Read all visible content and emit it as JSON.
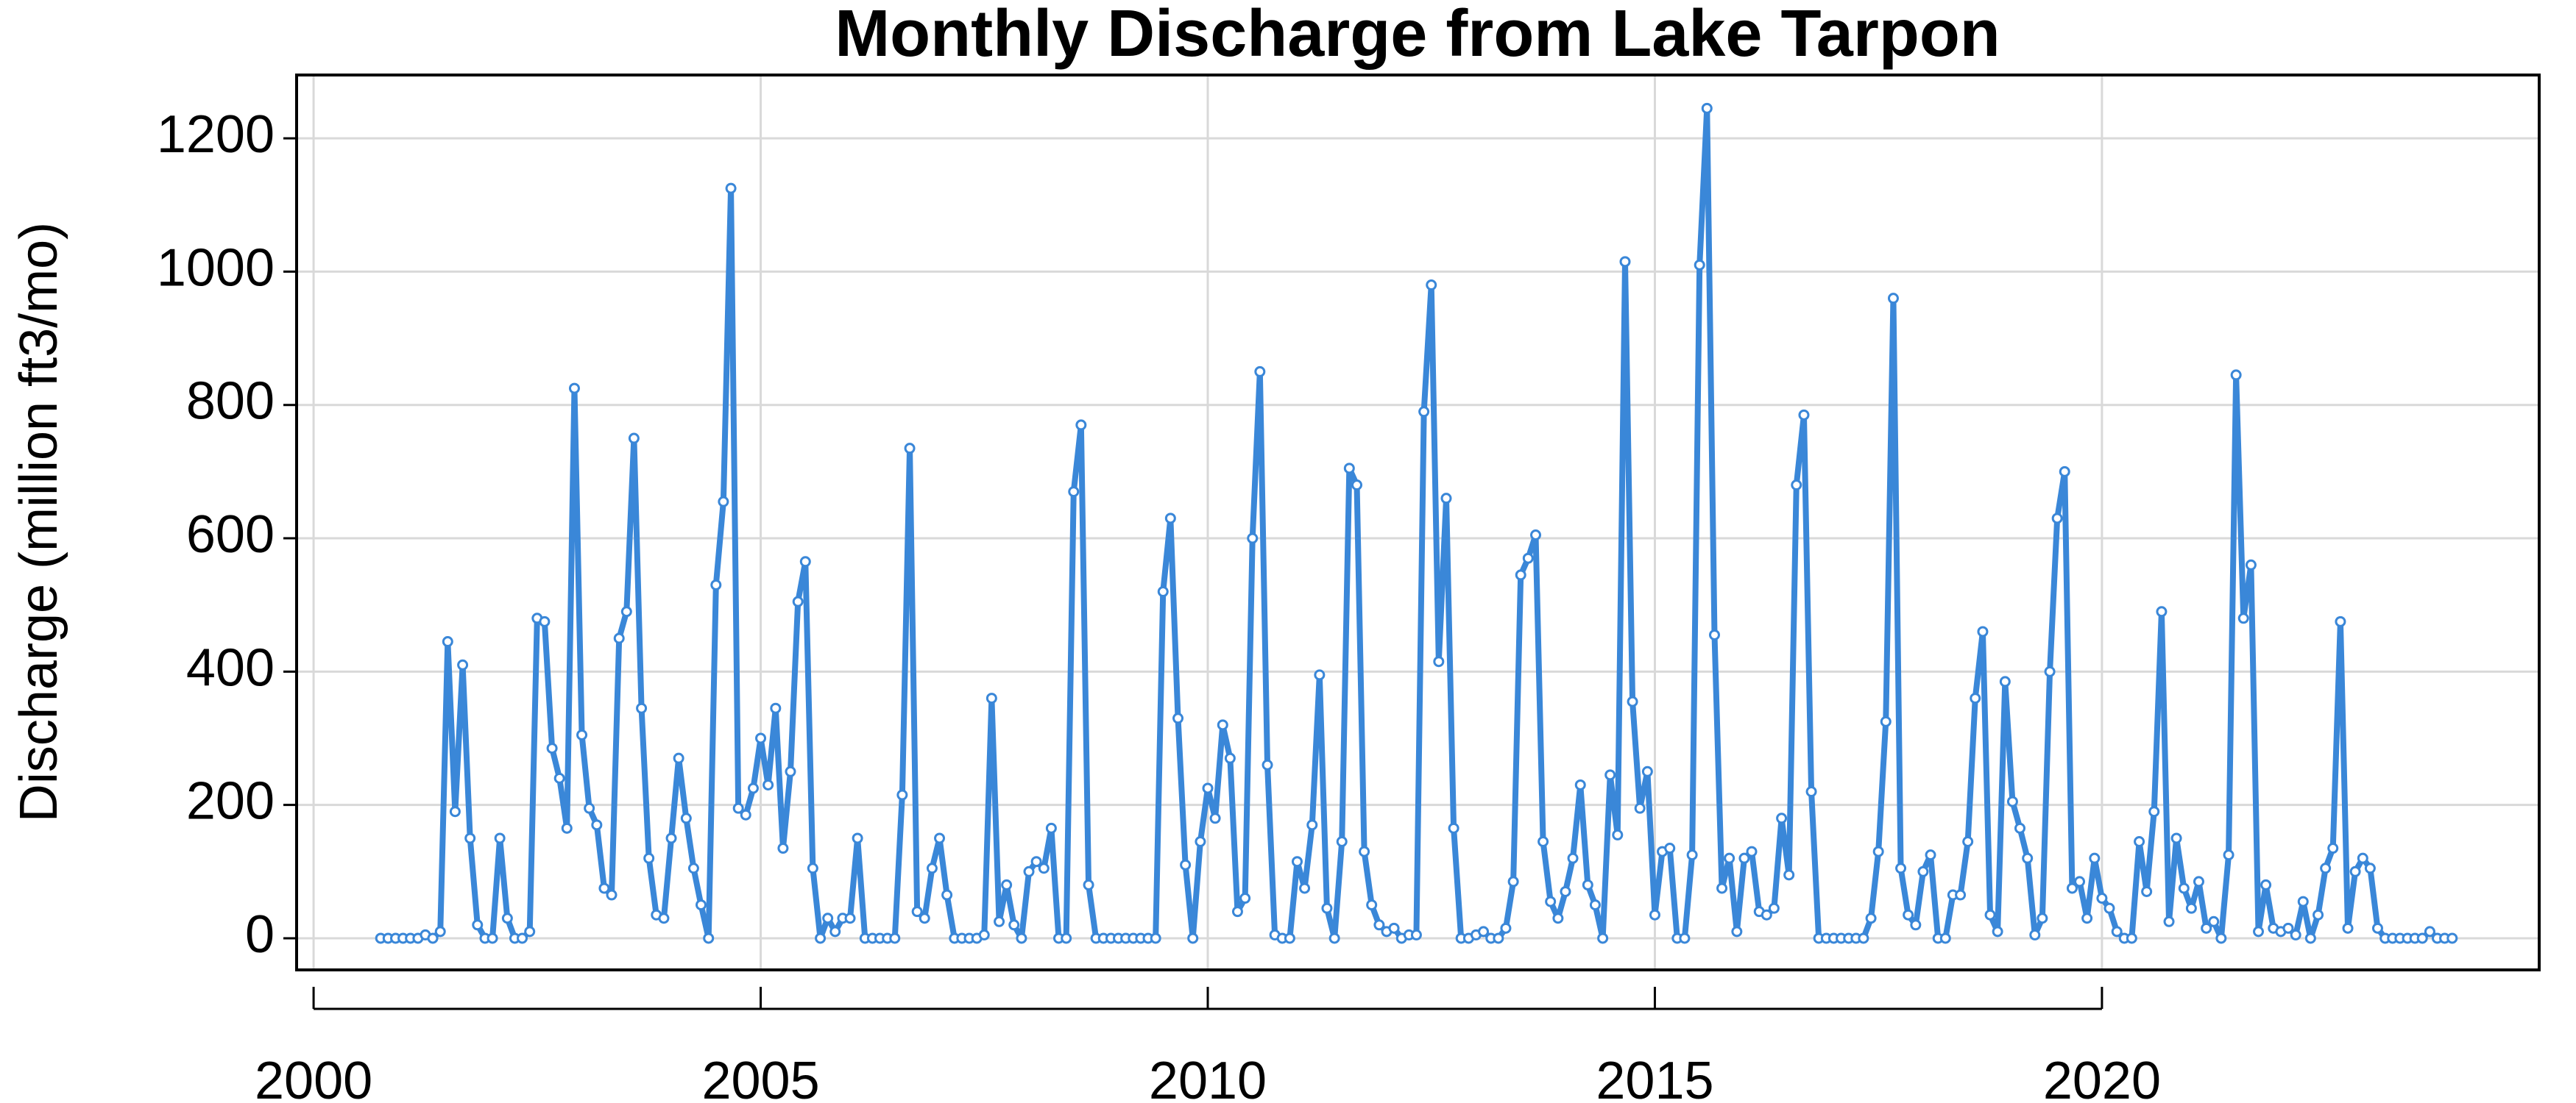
{
  "chart_data": {
    "type": "line",
    "title": "Monthly Discharge from Lake Tarpon",
    "y_label": "Discharge (million ft3/mo)",
    "color": "#3a87d8",
    "marker_fill": "#ffffff",
    "grid": true,
    "xlim": [
      1999.81,
      2024.89
    ],
    "ylim": [
      -47.5,
      1295
    ],
    "xticks": [
      2000,
      2005,
      2010,
      2015,
      2020
    ],
    "yticks": [
      0,
      200,
      400,
      600,
      800,
      1000,
      1200
    ],
    "x": [
      2000.75,
      2000.833,
      2000.917,
      2001,
      2001.083,
      2001.167,
      2001.25,
      2001.333,
      2001.417,
      2001.5,
      2001.583,
      2001.667,
      2001.75,
      2001.833,
      2001.917,
      2002,
      2002.083,
      2002.167,
      2002.25,
      2002.333,
      2002.417,
      2002.5,
      2002.583,
      2002.667,
      2002.75,
      2002.833,
      2002.917,
      2003,
      2003.083,
      2003.167,
      2003.25,
      2003.333,
      2003.417,
      2003.5,
      2003.583,
      2003.667,
      2003.75,
      2003.833,
      2003.917,
      2004,
      2004.083,
      2004.167,
      2004.25,
      2004.333,
      2004.417,
      2004.5,
      2004.583,
      2004.667,
      2004.75,
      2004.833,
      2004.917,
      2005,
      2005.083,
      2005.167,
      2005.25,
      2005.333,
      2005.417,
      2005.5,
      2005.583,
      2005.667,
      2005.75,
      2005.833,
      2005.917,
      2006,
      2006.083,
      2006.167,
      2006.25,
      2006.333,
      2006.417,
      2006.5,
      2006.583,
      2006.667,
      2006.75,
      2006.833,
      2006.917,
      2007,
      2007.083,
      2007.167,
      2007.25,
      2007.333,
      2007.417,
      2007.5,
      2007.583,
      2007.667,
      2007.75,
      2007.833,
      2007.917,
      2008,
      2008.083,
      2008.167,
      2008.25,
      2008.333,
      2008.417,
      2008.5,
      2008.583,
      2008.667,
      2008.75,
      2008.833,
      2008.917,
      2009,
      2009.083,
      2009.167,
      2009.25,
      2009.333,
      2009.417,
      2009.5,
      2009.583,
      2009.667,
      2009.75,
      2009.833,
      2009.917,
      2010,
      2010.083,
      2010.167,
      2010.25,
      2010.333,
      2010.417,
      2010.5,
      2010.583,
      2010.667,
      2010.75,
      2010.833,
      2010.917,
      2011,
      2011.083,
      2011.167,
      2011.25,
      2011.333,
      2011.417,
      2011.5,
      2011.583,
      2011.667,
      2011.75,
      2011.833,
      2011.917,
      2012,
      2012.083,
      2012.167,
      2012.25,
      2012.333,
      2012.417,
      2012.5,
      2012.583,
      2012.667,
      2012.75,
      2012.833,
      2012.917,
      2013,
      2013.083,
      2013.167,
      2013.25,
      2013.333,
      2013.417,
      2013.5,
      2013.583,
      2013.667,
      2013.75,
      2013.833,
      2013.917,
      2014,
      2014.083,
      2014.167,
      2014.25,
      2014.333,
      2014.417,
      2014.5,
      2014.583,
      2014.667,
      2014.75,
      2014.833,
      2014.917,
      2015,
      2015.083,
      2015.167,
      2015.25,
      2015.333,
      2015.417,
      2015.5,
      2015.583,
      2015.667,
      2015.75,
      2015.833,
      2015.917,
      2016,
      2016.083,
      2016.167,
      2016.25,
      2016.333,
      2016.417,
      2016.5,
      2016.583,
      2016.667,
      2016.75,
      2016.833,
      2016.917,
      2017,
      2017.083,
      2017.167,
      2017.25,
      2017.333,
      2017.417,
      2017.5,
      2017.583,
      2017.667,
      2017.75,
      2017.833,
      2017.917,
      2018,
      2018.083,
      2018.167,
      2018.25,
      2018.333,
      2018.417,
      2018.5,
      2018.583,
      2018.667,
      2018.75,
      2018.833,
      2018.917,
      2019,
      2019.083,
      2019.167,
      2019.25,
      2019.333,
      2019.417,
      2019.5,
      2019.583,
      2019.667,
      2019.75,
      2019.833,
      2019.917,
      2020,
      2020.083,
      2020.167,
      2020.25,
      2020.333,
      2020.417,
      2020.5,
      2020.583,
      2020.667,
      2020.75,
      2020.833,
      2020.917,
      2021,
      2021.083,
      2021.167,
      2021.25,
      2021.333,
      2021.417,
      2021.5,
      2021.583,
      2021.667,
      2021.75,
      2021.833,
      2021.917,
      2022,
      2022.083,
      2022.167,
      2022.25,
      2022.333,
      2022.417,
      2022.5,
      2022.583,
      2022.667,
      2022.75,
      2022.833,
      2022.917,
      2023,
      2023.083,
      2023.167,
      2023.25,
      2023.333,
      2023.417,
      2023.5,
      2023.583,
      2023.667,
      2023.75,
      2023.833,
      2023.917
    ],
    "values": [
      0,
      0,
      0,
      0,
      0,
      0,
      5,
      0,
      10,
      445,
      190,
      410,
      150,
      20,
      0,
      0,
      150,
      30,
      0,
      0,
      10,
      480,
      475,
      285,
      240,
      165,
      825,
      305,
      195,
      170,
      75,
      65,
      450,
      490,
      750,
      345,
      120,
      35,
      30,
      150,
      270,
      180,
      105,
      50,
      0,
      530,
      655,
      1125,
      195,
      185,
      225,
      300,
      230,
      345,
      135,
      250,
      505,
      565,
      105,
      0,
      30,
      10,
      30,
      30,
      150,
      0,
      0,
      0,
      0,
      0,
      215,
      735,
      40,
      30,
      105,
      150,
      65,
      0,
      0,
      0,
      0,
      5,
      360,
      25,
      80,
      20,
      0,
      100,
      115,
      105,
      165,
      0,
      0,
      670,
      770,
      80,
      0,
      0,
      0,
      0,
      0,
      0,
      0,
      0,
      0,
      520,
      630,
      330,
      110,
      0,
      145,
      225,
      180,
      320,
      270,
      40,
      60,
      600,
      850,
      260,
      5,
      0,
      0,
      115,
      75,
      170,
      395,
      45,
      0,
      145,
      705,
      680,
      130,
      50,
      20,
      10,
      15,
      0,
      5,
      5,
      790,
      980,
      415,
      660,
      165,
      0,
      0,
      5,
      10,
      0,
      0,
      15,
      85,
      545,
      570,
      605,
      145,
      55,
      30,
      70,
      120,
      230,
      80,
      50,
      0,
      245,
      155,
      1015,
      355,
      195,
      250,
      35,
      130,
      135,
      0,
      0,
      125,
      1010,
      1245,
      455,
      75,
      120,
      10,
      120,
      130,
      40,
      35,
      45,
      180,
      95,
      680,
      785,
      220,
      0,
      0,
      0,
      0,
      0,
      0,
      0,
      30,
      130,
      325,
      960,
      105,
      35,
      20,
      100,
      125,
      0,
      0,
      65,
      65,
      145,
      360,
      460,
      35,
      10,
      385,
      205,
      165,
      120,
      5,
      30,
      400,
      630,
      700,
      75,
      85,
      30,
      120,
      60,
      45,
      10,
      0,
      0,
      145,
      70,
      190,
      490,
      25,
      150,
      75,
      45,
      85,
      15,
      25,
      0,
      125,
      845,
      480,
      560,
      10,
      80,
      15,
      10,
      15,
      5,
      55,
      0,
      35,
      105,
      135,
      475,
      15,
      100,
      120,
      105,
      15,
      0,
      0,
      0,
      0,
      0,
      0,
      10,
      0,
      0,
      0
    ]
  }
}
